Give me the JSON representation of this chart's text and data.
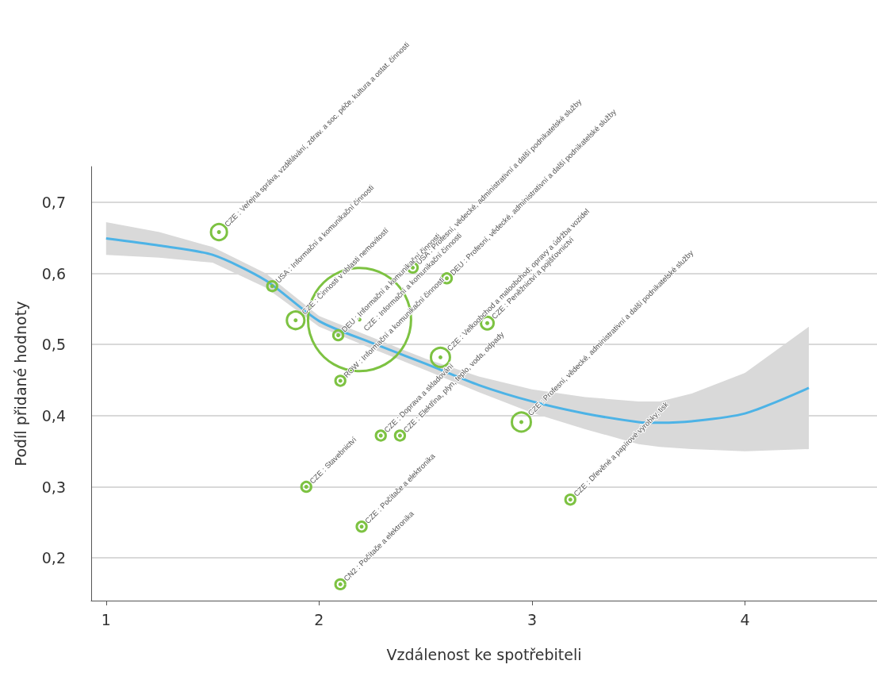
{
  "chart_data": {
    "type": "bubble",
    "xlabel": "Vzdálenost ke spotřebiteli",
    "ylabel": "Podíl přidané hodnoty",
    "xlim": [
      0.93,
      4.62
    ],
    "ylim": [
      0.14,
      0.75
    ],
    "xticks": [
      1,
      2,
      3,
      4
    ],
    "yticks": [
      {
        "value": 0.2,
        "label": "0,2"
      },
      {
        "value": 0.3,
        "label": "0,3"
      },
      {
        "value": 0.4,
        "label": "0,4"
      },
      {
        "value": 0.5,
        "label": "0,5"
      },
      {
        "value": 0.6,
        "label": "0,6"
      },
      {
        "value": 0.7,
        "label": "0,7"
      }
    ],
    "grid": "y",
    "series": [
      {
        "color": "#7dc242",
        "x": [
          1.53,
          1.78,
          1.89,
          2.09,
          2.19,
          2.44,
          2.6,
          2.57,
          2.79,
          2.29,
          2.38,
          2.1,
          1.94,
          2.2,
          2.1,
          2.95,
          3.18
        ],
        "values": [
          0.658,
          0.582,
          0.534,
          0.513,
          0.535,
          0.608,
          0.593,
          0.482,
          0.53,
          0.372,
          0.372,
          0.449,
          0.3,
          0.244,
          0.163,
          0.391,
          0.282
        ],
        "sizes": [
          0.024,
          0.009,
          0.029,
          0.009,
          1,
          0.009,
          0.009,
          0.034,
          0.015,
          0.009,
          0.009,
          0.009,
          0.009,
          0.009,
          0.009,
          0.034,
          0.009
        ]
      },
      {
        "type": "line",
        "color": "#4db3e6",
        "x": [
          1,
          1.25,
          1.5,
          1.75,
          2,
          2.25,
          2.5,
          2.75,
          3,
          3.25,
          3.5,
          3.6,
          3.75,
          4,
          4.3
        ],
        "values": [
          0.649,
          0.639,
          0.626,
          0.59,
          0.533,
          0.502,
          0.473,
          0.443,
          0.42,
          0.403,
          0.391,
          0.39,
          0.392,
          0.403,
          0.439
        ],
        "lower": [
          0.626,
          0.622,
          0.615,
          0.58,
          0.525,
          0.494,
          0.464,
          0.433,
          0.404,
          0.381,
          0.36,
          0.356,
          0.353,
          0.35,
          0.353
        ],
        "upper": [
          0.672,
          0.658,
          0.637,
          0.6,
          0.54,
          0.51,
          0.48,
          0.455,
          0.437,
          0.426,
          0.42,
          0.42,
          0.431,
          0.46,
          0.525
        ]
      }
    ],
    "annotations": [
      {
        "text": "CZE : Veřejná správa, vzdělávání, zdrav. a soc. péče, kultura a ostat. činnosti",
        "x": 1.53,
        "y": 0.658
      },
      {
        "text": "USA : Informační a komunikační činnosti",
        "x": 1.78,
        "y": 0.582
      },
      {
        "text": "CZE : Činnosti v oblasti nemovitostí",
        "x": 1.89,
        "y": 0.534
      },
      {
        "text": "DEU : Informační a komunikační činnosti",
        "x": 2.09,
        "y": 0.513
      },
      {
        "text": "CZE : Informační a komunikační činnosti",
        "x": 2.19,
        "y": 0.535
      },
      {
        "text": "USA : Profesní, vědecké, administrativní a další podnikatelské služby",
        "x": 2.44,
        "y": 0.608
      },
      {
        "text": "DEU : Profesní, vědecké, administrativní a další podnikatelské služby",
        "x": 2.6,
        "y": 0.593
      },
      {
        "text": "CZE : Velkoobchod a maloobchod; opravy a údržba vozidel",
        "x": 2.57,
        "y": 0.482
      },
      {
        "text": "CZE : Peněžnictví a pojišťovnictví",
        "x": 2.79,
        "y": 0.53
      },
      {
        "text": "CZE : Doprava a skladování",
        "x": 2.29,
        "y": 0.372
      },
      {
        "text": "CZE : Elektřina, plyn, teplo, voda, odpady",
        "x": 2.38,
        "y": 0.372
      },
      {
        "text": "ROW : Informační a komunikační činnosti",
        "x": 2.1,
        "y": 0.449
      },
      {
        "text": "CZE : Stavebnictví",
        "x": 1.94,
        "y": 0.3
      },
      {
        "text": "CZE : Počítače a elektronika",
        "x": 2.2,
        "y": 0.244
      },
      {
        "text": "CN2 : Počítače a elektronika",
        "x": 2.1,
        "y": 0.163
      },
      {
        "text": "CZE : Profesní, vědecké, administrativní a další podnikatelské služby",
        "x": 2.95,
        "y": 0.391
      },
      {
        "text": "CZE : Dřevěné a papírové výrobky, tisk",
        "x": 3.18,
        "y": 0.282
      }
    ]
  }
}
